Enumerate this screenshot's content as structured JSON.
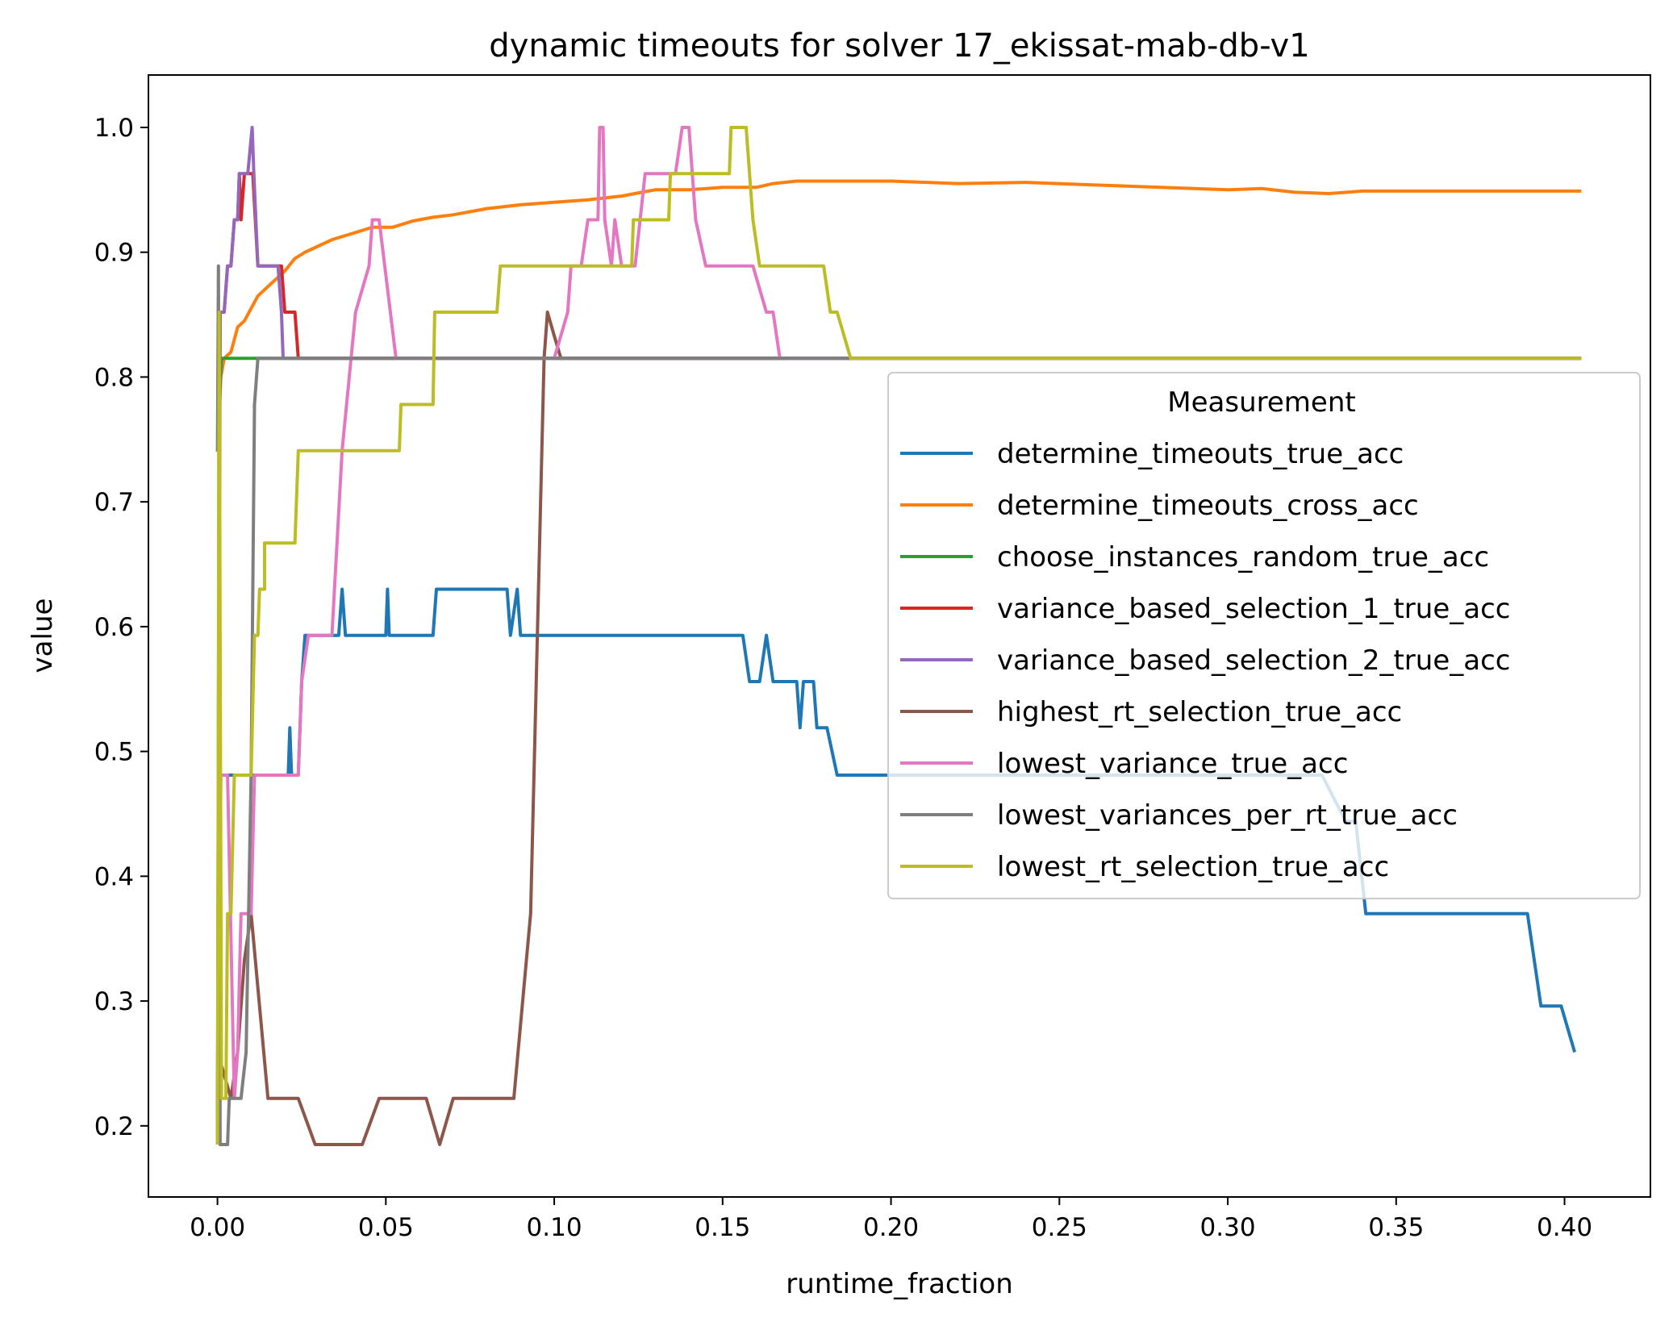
{
  "chart_data": {
    "type": "line",
    "title": "dynamic timeouts for solver 17_ekissat-mab-db-v1",
    "xlabel": "runtime_fraction",
    "ylabel": "value",
    "xlim": [
      -0.0205,
      0.4255
    ],
    "ylim": [
      0.143,
      1.042
    ],
    "xticks": [
      0.0,
      0.05,
      0.1,
      0.15,
      0.2,
      0.25,
      0.3,
      0.35,
      0.4
    ],
    "xtick_labels": [
      "0.00",
      "0.05",
      "0.10",
      "0.15",
      "0.20",
      "0.25",
      "0.30",
      "0.35",
      "0.40"
    ],
    "yticks": [
      0.2,
      0.3,
      0.4,
      0.5,
      0.6,
      0.7,
      0.8,
      0.9,
      1.0
    ],
    "ytick_labels": [
      "0.2",
      "0.3",
      "0.4",
      "0.5",
      "0.6",
      "0.7",
      "0.8",
      "0.9",
      "1.0"
    ],
    "grid": false,
    "legend": {
      "title": "Measurement",
      "placement": "center-right"
    },
    "series": [
      {
        "name": "determine_timeouts_true_acc",
        "color": "#1f77b4",
        "points": [
          [
            0.0,
            0.185
          ],
          [
            0.0008,
            0.481
          ],
          [
            0.018,
            0.481
          ],
          [
            0.021,
            0.481
          ],
          [
            0.0215,
            0.519
          ],
          [
            0.022,
            0.481
          ],
          [
            0.024,
            0.481
          ],
          [
            0.025,
            0.556
          ],
          [
            0.026,
            0.593
          ],
          [
            0.036,
            0.593
          ],
          [
            0.037,
            0.63
          ],
          [
            0.038,
            0.593
          ],
          [
            0.05,
            0.593
          ],
          [
            0.0505,
            0.63
          ],
          [
            0.051,
            0.593
          ],
          [
            0.064,
            0.593
          ],
          [
            0.065,
            0.63
          ],
          [
            0.086,
            0.63
          ],
          [
            0.087,
            0.593
          ],
          [
            0.089,
            0.63
          ],
          [
            0.09,
            0.593
          ],
          [
            0.156,
            0.593
          ],
          [
            0.158,
            0.556
          ],
          [
            0.161,
            0.556
          ],
          [
            0.163,
            0.593
          ],
          [
            0.165,
            0.556
          ],
          [
            0.172,
            0.556
          ],
          [
            0.173,
            0.519
          ],
          [
            0.174,
            0.556
          ],
          [
            0.177,
            0.556
          ],
          [
            0.178,
            0.519
          ],
          [
            0.181,
            0.519
          ],
          [
            0.184,
            0.481
          ],
          [
            0.328,
            0.481
          ],
          [
            0.335,
            0.444
          ],
          [
            0.338,
            0.444
          ],
          [
            0.341,
            0.37
          ],
          [
            0.389,
            0.37
          ],
          [
            0.393,
            0.296
          ],
          [
            0.399,
            0.296
          ],
          [
            0.403,
            0.259
          ]
        ]
      },
      {
        "name": "determine_timeouts_cross_acc",
        "color": "#ff7f0e",
        "points": [
          [
            0.0,
            0.74
          ],
          [
            0.001,
            0.8
          ],
          [
            0.002,
            0.815
          ],
          [
            0.004,
            0.82
          ],
          [
            0.005,
            0.83
          ],
          [
            0.006,
            0.84
          ],
          [
            0.008,
            0.845
          ],
          [
            0.01,
            0.855
          ],
          [
            0.012,
            0.865
          ],
          [
            0.014,
            0.87
          ],
          [
            0.016,
            0.875
          ],
          [
            0.018,
            0.88
          ],
          [
            0.02,
            0.885
          ],
          [
            0.023,
            0.895
          ],
          [
            0.026,
            0.9
          ],
          [
            0.03,
            0.905
          ],
          [
            0.034,
            0.91
          ],
          [
            0.04,
            0.915
          ],
          [
            0.046,
            0.92
          ],
          [
            0.052,
            0.92
          ],
          [
            0.058,
            0.925
          ],
          [
            0.064,
            0.928
          ],
          [
            0.07,
            0.93
          ],
          [
            0.08,
            0.935
          ],
          [
            0.09,
            0.938
          ],
          [
            0.1,
            0.94
          ],
          [
            0.11,
            0.942
          ],
          [
            0.12,
            0.945
          ],
          [
            0.126,
            0.948
          ],
          [
            0.13,
            0.95
          ],
          [
            0.14,
            0.95
          ],
          [
            0.15,
            0.952
          ],
          [
            0.16,
            0.952
          ],
          [
            0.165,
            0.955
          ],
          [
            0.172,
            0.957
          ],
          [
            0.18,
            0.957
          ],
          [
            0.2,
            0.957
          ],
          [
            0.22,
            0.955
          ],
          [
            0.24,
            0.956
          ],
          [
            0.26,
            0.954
          ],
          [
            0.28,
            0.952
          ],
          [
            0.3,
            0.95
          ],
          [
            0.31,
            0.951
          ],
          [
            0.32,
            0.948
          ],
          [
            0.33,
            0.947
          ],
          [
            0.34,
            0.949
          ],
          [
            0.36,
            0.949
          ],
          [
            0.38,
            0.949
          ],
          [
            0.405,
            0.949
          ]
        ]
      },
      {
        "name": "choose_instances_random_true_acc",
        "color": "#2ca02c",
        "points": [
          [
            0.0,
            0.185
          ],
          [
            0.0005,
            0.778
          ],
          [
            0.0012,
            0.815
          ],
          [
            0.405,
            0.815
          ]
        ]
      },
      {
        "name": "variance_based_selection_1_true_acc",
        "color": "#d62728",
        "points": [
          [
            0.0,
            0.185
          ],
          [
            0.0008,
            0.852
          ],
          [
            0.002,
            0.852
          ],
          [
            0.003,
            0.889
          ],
          [
            0.004,
            0.889
          ],
          [
            0.005,
            0.926
          ],
          [
            0.006,
            0.926
          ],
          [
            0.0065,
            0.963
          ],
          [
            0.007,
            0.926
          ],
          [
            0.008,
            0.963
          ],
          [
            0.009,
            0.963
          ],
          [
            0.0105,
            0.963
          ],
          [
            0.012,
            0.889
          ],
          [
            0.018,
            0.889
          ],
          [
            0.019,
            0.889
          ],
          [
            0.02,
            0.852
          ],
          [
            0.023,
            0.852
          ],
          [
            0.024,
            0.815
          ],
          [
            0.405,
            0.815
          ]
        ]
      },
      {
        "name": "variance_based_selection_2_true_acc",
        "color": "#9467bd",
        "points": [
          [
            0.0,
            0.185
          ],
          [
            0.0008,
            0.852
          ],
          [
            0.002,
            0.852
          ],
          [
            0.003,
            0.889
          ],
          [
            0.004,
            0.889
          ],
          [
            0.005,
            0.926
          ],
          [
            0.006,
            0.926
          ],
          [
            0.0065,
            0.963
          ],
          [
            0.009,
            0.963
          ],
          [
            0.0103,
            1.0
          ],
          [
            0.0108,
            0.963
          ],
          [
            0.012,
            0.889
          ],
          [
            0.018,
            0.889
          ],
          [
            0.019,
            0.852
          ],
          [
            0.0195,
            0.815
          ],
          [
            0.405,
            0.815
          ]
        ]
      },
      {
        "name": "highest_rt_selection_true_acc",
        "color": "#8c564b",
        "points": [
          [
            0.0,
            0.259
          ],
          [
            0.002,
            0.241
          ],
          [
            0.004,
            0.222
          ],
          [
            0.006,
            0.259
          ],
          [
            0.008,
            0.333
          ],
          [
            0.01,
            0.37
          ],
          [
            0.015,
            0.222
          ],
          [
            0.024,
            0.222
          ],
          [
            0.029,
            0.185
          ],
          [
            0.043,
            0.185
          ],
          [
            0.048,
            0.222
          ],
          [
            0.062,
            0.222
          ],
          [
            0.066,
            0.185
          ],
          [
            0.07,
            0.222
          ],
          [
            0.088,
            0.222
          ],
          [
            0.093,
            0.37
          ],
          [
            0.097,
            0.815
          ],
          [
            0.098,
            0.852
          ],
          [
            0.1,
            0.833
          ],
          [
            0.102,
            0.815
          ],
          [
            0.405,
            0.815
          ]
        ]
      },
      {
        "name": "lowest_variance_true_acc",
        "color": "#e377c2",
        "points": [
          [
            0.0,
            0.185
          ],
          [
            0.001,
            0.481
          ],
          [
            0.003,
            0.481
          ],
          [
            0.005,
            0.222
          ],
          [
            0.006,
            0.259
          ],
          [
            0.007,
            0.37
          ],
          [
            0.01,
            0.37
          ],
          [
            0.011,
            0.481
          ],
          [
            0.024,
            0.481
          ],
          [
            0.025,
            0.556
          ],
          [
            0.027,
            0.593
          ],
          [
            0.034,
            0.593
          ],
          [
            0.037,
            0.741
          ],
          [
            0.041,
            0.852
          ],
          [
            0.045,
            0.889
          ],
          [
            0.046,
            0.926
          ],
          [
            0.048,
            0.926
          ],
          [
            0.053,
            0.815
          ],
          [
            0.1,
            0.815
          ],
          [
            0.104,
            0.852
          ],
          [
            0.105,
            0.889
          ],
          [
            0.108,
            0.889
          ],
          [
            0.11,
            0.926
          ],
          [
            0.113,
            0.926
          ],
          [
            0.1135,
            1.0
          ],
          [
            0.1145,
            1.0
          ],
          [
            0.115,
            0.926
          ],
          [
            0.117,
            0.889
          ],
          [
            0.118,
            0.926
          ],
          [
            0.12,
            0.889
          ],
          [
            0.124,
            0.889
          ],
          [
            0.127,
            0.963
          ],
          [
            0.136,
            0.963
          ],
          [
            0.138,
            1.0
          ],
          [
            0.14,
            1.0
          ],
          [
            0.142,
            0.926
          ],
          [
            0.145,
            0.889
          ],
          [
            0.159,
            0.889
          ],
          [
            0.163,
            0.852
          ],
          [
            0.165,
            0.852
          ],
          [
            0.167,
            0.815
          ],
          [
            0.405,
            0.815
          ]
        ]
      },
      {
        "name": "lowest_variances_per_rt_true_acc",
        "color": "#7f7f7f",
        "points": [
          [
            0.0,
            0.741
          ],
          [
            0.0003,
            0.889
          ],
          [
            0.0008,
            0.185
          ],
          [
            0.003,
            0.185
          ],
          [
            0.0035,
            0.222
          ],
          [
            0.007,
            0.222
          ],
          [
            0.0085,
            0.259
          ],
          [
            0.0095,
            0.407
          ],
          [
            0.01,
            0.481
          ],
          [
            0.011,
            0.778
          ],
          [
            0.012,
            0.815
          ],
          [
            0.405,
            0.815
          ]
        ]
      },
      {
        "name": "lowest_rt_selection_true_acc",
        "color": "#bcbd22",
        "points": [
          [
            0.0,
            0.185
          ],
          [
            0.0005,
            0.852
          ],
          [
            0.0012,
            0.222
          ],
          [
            0.0025,
            0.222
          ],
          [
            0.003,
            0.37
          ],
          [
            0.004,
            0.37
          ],
          [
            0.005,
            0.481
          ],
          [
            0.01,
            0.481
          ],
          [
            0.011,
            0.593
          ],
          [
            0.012,
            0.593
          ],
          [
            0.0125,
            0.63
          ],
          [
            0.014,
            0.63
          ],
          [
            0.014,
            0.667
          ],
          [
            0.023,
            0.667
          ],
          [
            0.0235,
            0.704
          ],
          [
            0.024,
            0.741
          ],
          [
            0.054,
            0.741
          ],
          [
            0.0545,
            0.778
          ],
          [
            0.064,
            0.778
          ],
          [
            0.0645,
            0.852
          ],
          [
            0.083,
            0.852
          ],
          [
            0.084,
            0.889
          ],
          [
            0.123,
            0.889
          ],
          [
            0.1235,
            0.926
          ],
          [
            0.134,
            0.926
          ],
          [
            0.1345,
            0.963
          ],
          [
            0.152,
            0.963
          ],
          [
            0.1525,
            1.0
          ],
          [
            0.157,
            1.0
          ],
          [
            0.159,
            0.926
          ],
          [
            0.161,
            0.889
          ],
          [
            0.18,
            0.889
          ],
          [
            0.182,
            0.852
          ],
          [
            0.184,
            0.852
          ],
          [
            0.188,
            0.815
          ],
          [
            0.405,
            0.815
          ]
        ]
      }
    ]
  }
}
